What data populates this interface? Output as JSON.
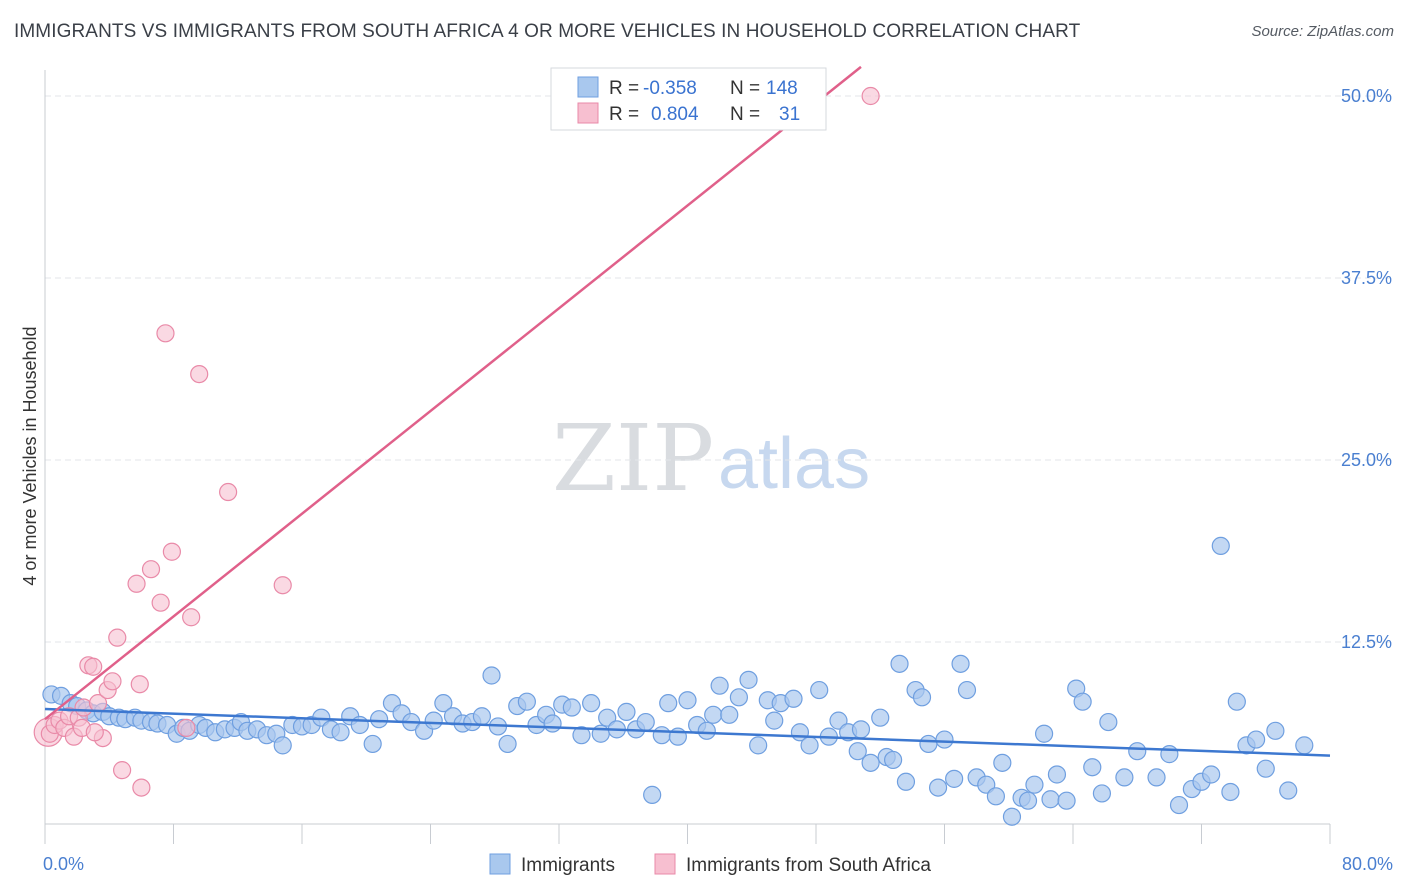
{
  "title": "IMMIGRANTS VS IMMIGRANTS FROM SOUTH AFRICA 4 OR MORE VEHICLES IN HOUSEHOLD CORRELATION CHART",
  "source": "Source: ZipAtlas.com",
  "watermark": {
    "zip": "ZIP",
    "atlas": "atlas"
  },
  "colors": {
    "blue_fill": "#a9c8ee",
    "blue_stroke": "#6f9fe0",
    "blue_line": "#3d78d0",
    "pink_fill": "#f7bfd0",
    "pink_stroke": "#e98aa8",
    "pink_line": "#e0608a",
    "grid": "#e3e6ea",
    "value_text": "#3a73d0"
  },
  "legend": {
    "rows": [
      {
        "r_label": "R =",
        "r_value": "-0.358",
        "n_label": "N =",
        "n_value": "148"
      },
      {
        "r_label": "R =",
        "r_value": "0.804",
        "n_label": "N =",
        "n_value": "31"
      }
    ]
  },
  "chart_data": {
    "type": "scatter",
    "title": "IMMIGRANTS VS IMMIGRANTS FROM SOUTH AFRICA 4 OR MORE VEHICLES IN HOUSEHOLD CORRELATION CHART",
    "xlabel": "",
    "ylabel": "4 or more Vehicles in Household",
    "xlim": [
      0,
      80
    ],
    "ylim": [
      0,
      52
    ],
    "x_tick_labels": [
      "0.0%",
      "80.0%"
    ],
    "y_ticks": [
      12.5,
      25.0,
      37.5,
      50.0
    ],
    "y_tick_labels": [
      "12.5%",
      "25.0%",
      "37.5%",
      "50.0%"
    ],
    "grid": true,
    "legend_position": "top-center",
    "series": [
      {
        "name": "Immigrants",
        "trend": {
          "x": [
            0,
            80
          ],
          "y": [
            7.9,
            4.7
          ]
        },
        "points": [
          [
            0.4,
            8.9
          ],
          [
            1.0,
            8.8
          ],
          [
            1.6,
            8.3
          ],
          [
            2.0,
            8.1
          ],
          [
            2.6,
            7.8
          ],
          [
            3.0,
            7.6
          ],
          [
            3.6,
            7.7
          ],
          [
            4.0,
            7.4
          ],
          [
            4.6,
            7.3
          ],
          [
            5.0,
            7.2
          ],
          [
            5.6,
            7.3
          ],
          [
            6.0,
            7.1
          ],
          [
            6.6,
            7.0
          ],
          [
            7.0,
            6.9
          ],
          [
            7.6,
            6.8
          ],
          [
            8.2,
            6.2
          ],
          [
            8.6,
            6.6
          ],
          [
            9.0,
            6.4
          ],
          [
            9.6,
            6.8
          ],
          [
            10.0,
            6.6
          ],
          [
            10.6,
            6.3
          ],
          [
            11.2,
            6.5
          ],
          [
            11.8,
            6.6
          ],
          [
            12.2,
            7.0
          ],
          [
            12.6,
            6.4
          ],
          [
            13.2,
            6.5
          ],
          [
            13.8,
            6.1
          ],
          [
            14.4,
            6.2
          ],
          [
            14.8,
            5.4
          ],
          [
            15.4,
            6.8
          ],
          [
            16.0,
            6.7
          ],
          [
            16.6,
            6.8
          ],
          [
            17.2,
            7.3
          ],
          [
            17.8,
            6.5
          ],
          [
            18.4,
            6.3
          ],
          [
            19.0,
            7.4
          ],
          [
            19.6,
            6.8
          ],
          [
            20.4,
            5.5
          ],
          [
            20.8,
            7.2
          ],
          [
            21.6,
            8.3
          ],
          [
            22.2,
            7.6
          ],
          [
            22.8,
            7.0
          ],
          [
            23.6,
            6.4
          ],
          [
            24.2,
            7.1
          ],
          [
            24.8,
            8.3
          ],
          [
            25.4,
            7.4
          ],
          [
            26.0,
            6.9
          ],
          [
            26.6,
            7.0
          ],
          [
            27.2,
            7.4
          ],
          [
            27.8,
            10.2
          ],
          [
            28.2,
            6.7
          ],
          [
            28.8,
            5.5
          ],
          [
            29.4,
            8.1
          ],
          [
            30.0,
            8.4
          ],
          [
            30.6,
            6.8
          ],
          [
            31.2,
            7.5
          ],
          [
            31.6,
            6.9
          ],
          [
            32.2,
            8.2
          ],
          [
            32.8,
            8.0
          ],
          [
            33.4,
            6.1
          ],
          [
            34.0,
            8.3
          ],
          [
            34.6,
            6.2
          ],
          [
            35.0,
            7.3
          ],
          [
            35.6,
            6.5
          ],
          [
            36.2,
            7.7
          ],
          [
            36.8,
            6.5
          ],
          [
            37.4,
            7.0
          ],
          [
            37.8,
            2.0
          ],
          [
            38.4,
            6.1
          ],
          [
            38.8,
            8.3
          ],
          [
            39.4,
            6.0
          ],
          [
            40.0,
            8.5
          ],
          [
            40.6,
            6.8
          ],
          [
            41.2,
            6.4
          ],
          [
            41.6,
            7.5
          ],
          [
            42.0,
            9.5
          ],
          [
            42.6,
            7.5
          ],
          [
            43.2,
            8.7
          ],
          [
            43.8,
            9.9
          ],
          [
            44.4,
            5.4
          ],
          [
            45.0,
            8.5
          ],
          [
            45.4,
            7.1
          ],
          [
            45.8,
            8.3
          ],
          [
            46.6,
            8.6
          ],
          [
            47.0,
            6.3
          ],
          [
            47.6,
            5.4
          ],
          [
            48.2,
            9.2
          ],
          [
            48.8,
            6.0
          ],
          [
            49.4,
            7.1
          ],
          [
            50.0,
            6.3
          ],
          [
            50.6,
            5.0
          ],
          [
            50.8,
            6.5
          ],
          [
            51.4,
            4.2
          ],
          [
            52.0,
            7.3
          ],
          [
            52.4,
            4.6
          ],
          [
            52.8,
            4.4
          ],
          [
            53.2,
            11.0
          ],
          [
            53.6,
            2.9
          ],
          [
            54.2,
            9.2
          ],
          [
            54.6,
            8.7
          ],
          [
            55.0,
            5.5
          ],
          [
            55.6,
            2.5
          ],
          [
            56.0,
            5.8
          ],
          [
            56.6,
            3.1
          ],
          [
            57.0,
            11.0
          ],
          [
            57.4,
            9.2
          ],
          [
            58.0,
            3.2
          ],
          [
            58.6,
            2.7
          ],
          [
            59.2,
            1.9
          ],
          [
            59.6,
            4.2
          ],
          [
            60.2,
            0.5
          ],
          [
            60.8,
            1.8
          ],
          [
            61.2,
            1.6
          ],
          [
            61.6,
            2.7
          ],
          [
            62.2,
            6.2
          ],
          [
            62.6,
            1.7
          ],
          [
            63.0,
            3.4
          ],
          [
            63.6,
            1.6
          ],
          [
            64.2,
            9.3
          ],
          [
            64.6,
            8.4
          ],
          [
            65.2,
            3.9
          ],
          [
            65.8,
            2.1
          ],
          [
            66.2,
            7.0
          ],
          [
            67.2,
            3.2
          ],
          [
            68.0,
            5.0
          ],
          [
            69.2,
            3.2
          ],
          [
            70.0,
            4.8
          ],
          [
            70.6,
            1.3
          ],
          [
            71.4,
            2.4
          ],
          [
            72.0,
            2.9
          ],
          [
            72.6,
            3.4
          ],
          [
            73.2,
            19.1
          ],
          [
            73.8,
            2.2
          ],
          [
            74.2,
            8.4
          ],
          [
            74.8,
            5.4
          ],
          [
            75.4,
            5.8
          ],
          [
            76.0,
            3.8
          ],
          [
            76.6,
            6.4
          ],
          [
            77.4,
            2.3
          ],
          [
            78.4,
            5.4
          ]
        ]
      },
      {
        "name": "Immigrants from South Africa",
        "trend": {
          "x": [
            0,
            50.8
          ],
          "y": [
            7.2,
            52.0
          ]
        },
        "points": [
          [
            0.3,
            6.2
          ],
          [
            0.6,
            6.8
          ],
          [
            0.9,
            7.1
          ],
          [
            1.2,
            6.6
          ],
          [
            1.5,
            7.4
          ],
          [
            1.8,
            6.0
          ],
          [
            2.1,
            7.3
          ],
          [
            2.4,
            8.0
          ],
          [
            2.7,
            10.9
          ],
          [
            3.0,
            10.8
          ],
          [
            3.3,
            8.3
          ],
          [
            3.6,
            5.9
          ],
          [
            3.9,
            9.2
          ],
          [
            4.2,
            9.8
          ],
          [
            4.5,
            12.8
          ],
          [
            4.8,
            3.7
          ],
          [
            5.7,
            16.5
          ],
          [
            5.9,
            9.6
          ],
          [
            6.0,
            2.5
          ],
          [
            6.6,
            17.5
          ],
          [
            7.2,
            15.2
          ],
          [
            7.5,
            33.7
          ],
          [
            7.9,
            18.7
          ],
          [
            8.8,
            6.6
          ],
          [
            9.1,
            14.2
          ],
          [
            9.6,
            30.9
          ],
          [
            11.4,
            22.8
          ],
          [
            14.8,
            16.4
          ],
          [
            2.3,
            6.6
          ],
          [
            3.1,
            6.3
          ],
          [
            51.4,
            50.0
          ]
        ]
      }
    ]
  },
  "bottom_legend": [
    {
      "label": "Immigrants"
    },
    {
      "label": "Immigrants from South Africa"
    }
  ]
}
